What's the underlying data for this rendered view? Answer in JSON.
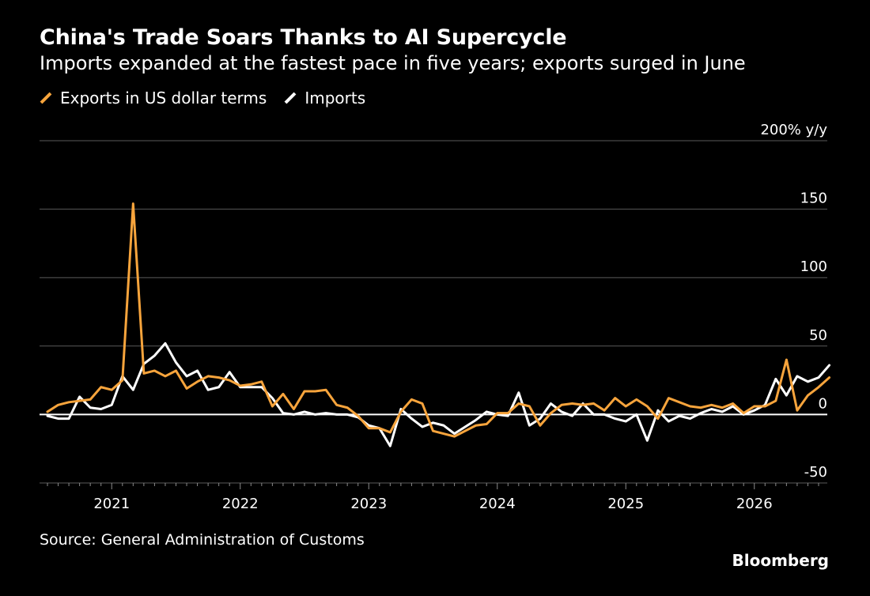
{
  "header": {
    "title": "China's Trade Soars Thanks to AI Supercycle",
    "subtitle": "Imports expanded at the fastest pace in five years; exports surged in June"
  },
  "legend": [
    {
      "label": "Exports in US dollar terms",
      "color": "#F7A43C"
    },
    {
      "label": "Imports",
      "color": "#FFFFFF"
    }
  ],
  "footer": {
    "source": "Source: General Administration of Customs",
    "brand": "Bloomberg"
  },
  "chart_data": {
    "type": "line",
    "ylabel_unit": "200% y/y",
    "ylim": [
      -50,
      200
    ],
    "yticks": [
      -50,
      0,
      50,
      100,
      150,
      200
    ],
    "ytick_labels": [
      "-50",
      "0",
      "50",
      "100",
      "150",
      "200% y/y"
    ],
    "xlim": [
      "2020-07",
      "2026-07"
    ],
    "xticks": [
      "2021-01",
      "2022-01",
      "2023-01",
      "2024-01",
      "2025-01",
      "2026-01"
    ],
    "xtick_labels": [
      "2021",
      "2022",
      "2023",
      "2024",
      "2025",
      "2026"
    ],
    "grid": true,
    "legend_position": "top-left",
    "series": [
      {
        "name": "Exports in US dollar terms",
        "color": "#F7A43C",
        "x_start": "2020-07",
        "values": [
          2,
          7,
          9,
          10,
          11,
          20,
          18,
          25,
          154,
          30,
          32,
          28,
          32,
          19,
          24,
          28,
          27,
          25,
          21,
          22,
          24,
          6,
          15,
          4,
          17,
          17,
          18,
          7,
          5,
          -1,
          -10,
          -10,
          -13,
          2,
          11,
          8,
          -12,
          -14,
          -16,
          -12,
          -8,
          -7,
          1,
          1,
          8,
          6,
          -8,
          1,
          7,
          8,
          7,
          8,
          3,
          12,
          6,
          11,
          6,
          -3,
          12,
          9,
          6,
          5,
          7,
          5,
          8,
          1,
          6,
          6,
          10,
          40,
          3,
          14,
          20,
          27
        ]
      },
      {
        "name": "Imports",
        "color": "#FFFFFF",
        "x_start": "2020-07",
        "values": [
          -1,
          -3,
          -3,
          13,
          5,
          4,
          7,
          28,
          18,
          37,
          43,
          52,
          38,
          28,
          32,
          18,
          20,
          31,
          20,
          20,
          20,
          12,
          1,
          0,
          2,
          0,
          1,
          0,
          0,
          -2,
          -8,
          -10,
          -23,
          4,
          -3,
          -9,
          -6,
          -8,
          -14,
          -9,
          -4,
          2,
          0,
          -1,
          16,
          -8,
          -3,
          8,
          2,
          -1,
          8,
          0,
          0,
          -3,
          -5,
          0,
          -19,
          3,
          -5,
          -1,
          -3,
          1,
          4,
          2,
          6,
          0,
          3,
          7,
          26,
          14,
          28,
          24,
          27,
          36
        ]
      }
    ]
  }
}
